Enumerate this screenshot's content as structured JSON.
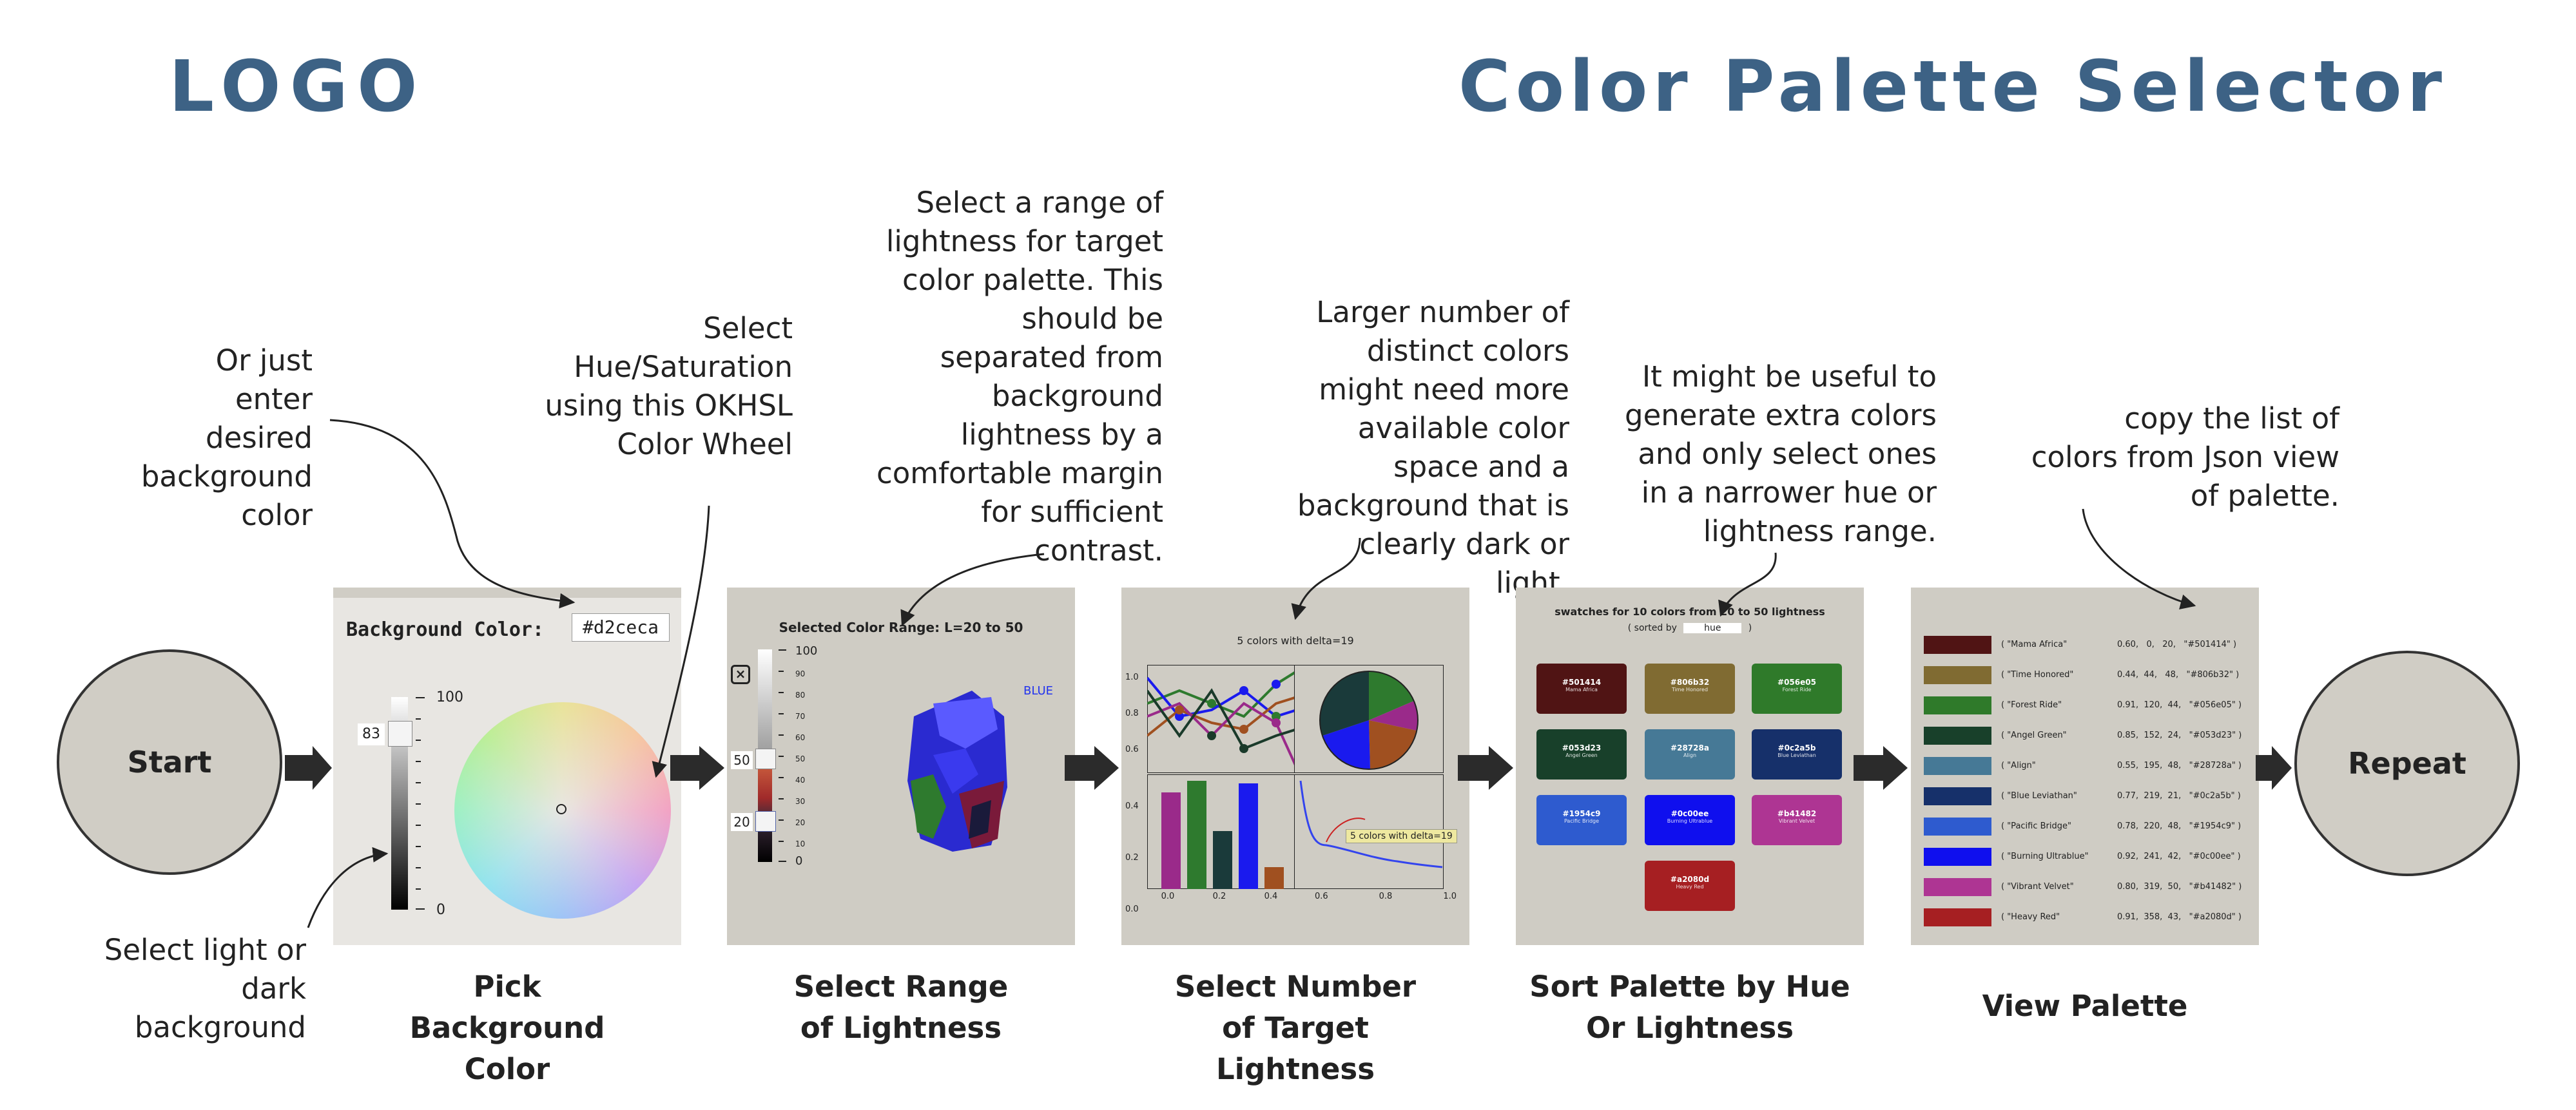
{
  "header": {
    "logo": "LOGO",
    "title": "Color Palette Selector"
  },
  "flow": {
    "start": "Start",
    "repeat": "Repeat"
  },
  "notes": {
    "enter_bg": "Or just enter desired background color",
    "light_dark": "Select light or dark background",
    "hue_sat": "Select Hue/Saturation using this OKHSL Color Wheel",
    "lightness_range": "Select a range of lightness for target color palette. This should be separated from background lightness by a comfortable margin for sufficient contrast.",
    "num_colors": "Larger number of distinct colors might need more available color space and a background that is clearly dark or light.",
    "extra_colors": "It might be useful to generate extra colors and only select ones in a narrower hue or lightness range.",
    "copy_list": "copy the list of colors from Json view of palette."
  },
  "steps": [
    {
      "caption": "Pick Background Color"
    },
    {
      "caption": "Select Range of Lightness"
    },
    {
      "caption": "Select Number of Target Lightness"
    },
    {
      "caption": "Sort Palette by Hue Or Lightness"
    },
    {
      "caption": "View Palette"
    }
  ],
  "panel1": {
    "bg_label": "Background Color:",
    "bg_value": "#d2ceca",
    "slider_value": "83",
    "slider_top": "100",
    "slider_bottom": "0",
    "lightness_level": 0.83
  },
  "panel2": {
    "title": "Selected Color Range: L=20 to 50",
    "upper": "50",
    "lower": "20",
    "scale_top": "100",
    "scale_bottom": "0",
    "ticks": [
      "90",
      "80",
      "70",
      "60",
      "50",
      "40",
      "30",
      "20",
      "10"
    ],
    "series_label": "BLUE"
  },
  "panel3": {
    "title": "5 colors with delta=19",
    "annotation": "5 colors with delta=19",
    "y_ticks": [
      "1.0",
      "0.8",
      "0.6"
    ],
    "bar_y_ticks": [
      "0.4",
      "0.2",
      "0.0"
    ],
    "bar_x_ticks": [
      "0.0",
      "0.2",
      "0.4"
    ],
    "curve_x_ticks": [
      "0.6",
      "0.8",
      "1.0"
    ]
  },
  "panel4": {
    "title": "swatches for 10 colors from 20 to 50 lightness",
    "sorted_by_prefix": "( sorted by",
    "sorted_by_value": "hue",
    "sorted_by_suffix": ")",
    "cards": [
      {
        "hex": "#501414",
        "name": "Mama Africa",
        "color": "#501414"
      },
      {
        "hex": "#806b32",
        "name": "Time Honored",
        "color": "#806b32"
      },
      {
        "hex": "#056e05",
        "name": "Forest Ride",
        "color": "#2f7a2a"
      },
      {
        "hex": "#053d23",
        "name": "Angel Green",
        "color": "#18402a"
      },
      {
        "hex": "#28728a",
        "name": "Align",
        "color": "#467996"
      },
      {
        "hex": "#0c2a5b",
        "name": "Blue Leviathan",
        "color": "#16306a"
      },
      {
        "hex": "#1954c9",
        "name": "Pacific Bridge",
        "color": "#2e5bcf"
      },
      {
        "hex": "#0c00ee",
        "name": "Burning Ultrablue",
        "color": "#0f0fee"
      },
      {
        "hex": "#b41482",
        "name": "Vibrant Velvet",
        "color": "#ae3593"
      },
      {
        "hex": "#a2080d",
        "name": "Heavy Red",
        "color": "#a61f22"
      }
    ]
  },
  "panel5": {
    "rows": [
      {
        "name": "( \"Mama Africa\"",
        "values": "0.60,   0,   20,   \"#501414\" )",
        "color": "#501414"
      },
      {
        "name": "( \"Time Honored\"",
        "values": "0.44,  44,   48,   \"#806b32\" )",
        "color": "#806b32"
      },
      {
        "name": "( \"Forest Ride\"",
        "values": "0.91,  120,  44,   \"#056e05\" )",
        "color": "#2f7a2a"
      },
      {
        "name": "( \"Angel Green\"",
        "values": "0.85,  152,  24,   \"#053d23\" )",
        "color": "#18402a"
      },
      {
        "name": "( \"Align\"",
        "values": "0.55,  195,  48,   \"#28728a\" )",
        "color": "#467996"
      },
      {
        "name": "( \"Blue Leviathan\"",
        "values": "0.77,  219,  21,   \"#0c2a5b\" )",
        "color": "#16306a"
      },
      {
        "name": "( \"Pacific Bridge\"",
        "values": "0.78,  220,  48,   \"#1954c9\" )",
        "color": "#2e5bcf"
      },
      {
        "name": "( \"Burning Ultrablue\"",
        "values": "0.92,  241,  42,   \"#0c00ee\" )",
        "color": "#0f0fee"
      },
      {
        "name": "( \"Vibrant Velvet\"",
        "values": "0.80,  319,  50,   \"#b41482\" )",
        "color": "#ae3593"
      },
      {
        "name": "( \"Heavy Red\"",
        "values": "0.91,  358,  43,   \"#a2080d\" )",
        "color": "#a61f22"
      }
    ]
  },
  "colors": {
    "brand": "#3d6285",
    "panel_bg": "#cfccc4",
    "circle_bg": "#d0cdc5",
    "arrow": "#333333"
  }
}
